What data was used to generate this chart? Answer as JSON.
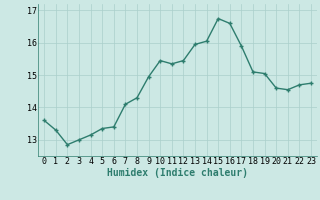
{
  "x": [
    0,
    1,
    2,
    3,
    4,
    5,
    6,
    7,
    8,
    9,
    10,
    11,
    12,
    13,
    14,
    15,
    16,
    17,
    18,
    19,
    20,
    21,
    22,
    23
  ],
  "y": [
    13.6,
    13.3,
    12.85,
    13.0,
    13.15,
    13.35,
    13.4,
    14.1,
    14.3,
    14.95,
    15.45,
    15.35,
    15.45,
    15.95,
    16.05,
    16.75,
    16.6,
    15.9,
    15.1,
    15.05,
    14.6,
    14.55,
    14.7,
    14.75
  ],
  "line_color": "#2e7d6e",
  "marker": "+",
  "marker_size": 3,
  "marker_linewidth": 1.0,
  "line_width": 1.0,
  "bg_color": "#cce8e4",
  "grid_color": "#aacfcb",
  "xlabel": "Humidex (Indice chaleur)",
  "xlim": [
    -0.5,
    23.5
  ],
  "ylim": [
    12.5,
    17.2
  ],
  "yticks": [
    13,
    14,
    15,
    16,
    17
  ],
  "xticks": [
    0,
    1,
    2,
    3,
    4,
    5,
    6,
    7,
    8,
    9,
    10,
    11,
    12,
    13,
    14,
    15,
    16,
    17,
    18,
    19,
    20,
    21,
    22,
    23
  ],
  "xlabel_fontsize": 7.0,
  "tick_fontsize": 6.0
}
